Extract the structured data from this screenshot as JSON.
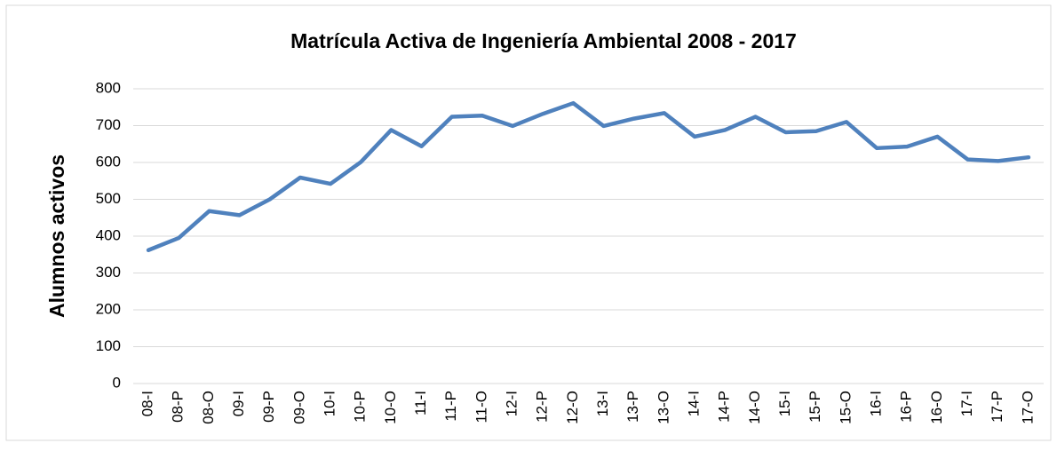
{
  "chart_data": {
    "type": "line",
    "title": "Matrícula Activa de Ingeniería Ambiental 2008 - 2017",
    "y_label": "Alumnos activos",
    "categories": [
      "08-I",
      "08-P",
      "08-O",
      "09-I",
      "09-P",
      "09-O",
      "10-I",
      "10-P",
      "10-O",
      "11-I",
      "11-P",
      "11-O",
      "12-I",
      "12-P",
      "12-O",
      "13-I",
      "13-P",
      "13-O",
      "14-I",
      "14-P",
      "14-O",
      "15-I",
      "15-P",
      "15-O",
      "16-I",
      "16-P",
      "16-O",
      "17-I",
      "17-P",
      "17-O"
    ],
    "series": [
      {
        "name": "Alumnos activos",
        "color": "#4f81bd",
        "values": [
          362,
          395,
          468,
          457,
          500,
          559,
          542,
          601,
          688,
          644,
          724,
          727,
          699,
          732,
          761,
          699,
          719,
          734,
          670,
          688,
          724,
          682,
          685,
          710,
          639,
          643,
          670,
          608,
          604,
          614
        ]
      }
    ],
    "ylim": [
      0,
      800
    ],
    "yticks": [
      0,
      100,
      200,
      300,
      400,
      500,
      600,
      700,
      800
    ],
    "grid": true
  }
}
